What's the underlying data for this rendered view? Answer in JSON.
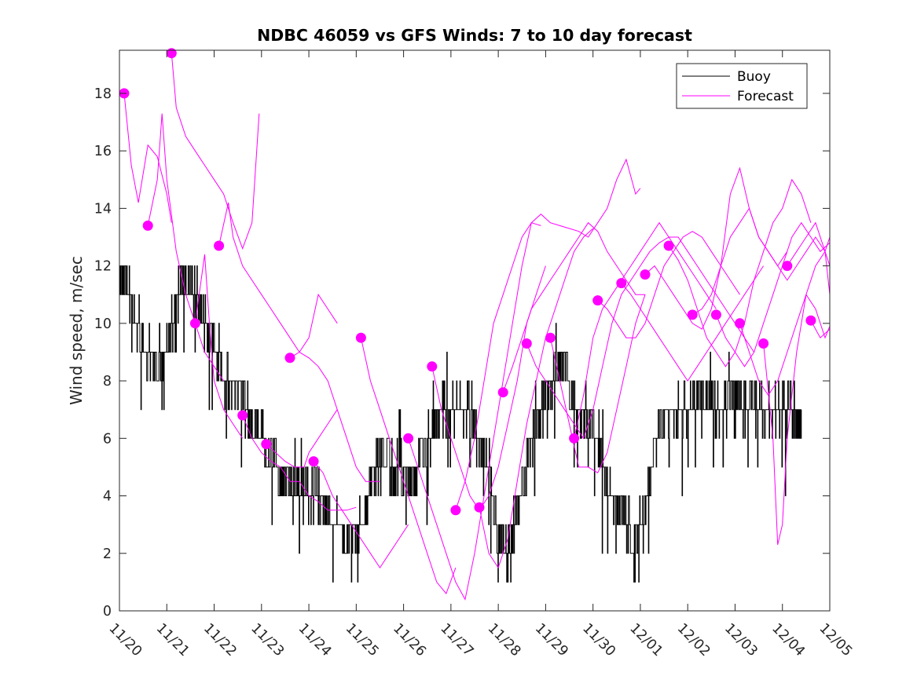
{
  "chart_data": {
    "type": "line",
    "title": "NDBC 46059 vs GFS Winds: 7 to 10 day forecast",
    "xlabel": "",
    "ylabel": "Wind speed, m/sec",
    "xlim": [
      0,
      15
    ],
    "ylim": [
      0,
      19.5
    ],
    "grid": false,
    "legend_position": "top-right",
    "x_tick_labels": [
      "11/20",
      "11/21",
      "11/22",
      "11/23",
      "11/24",
      "11/25",
      "11/26",
      "11/27",
      "11/28",
      "11/29",
      "11/30",
      "12/01",
      "12/02",
      "12/03",
      "12/04",
      "12/05"
    ],
    "y_ticks": [
      0,
      2,
      4,
      6,
      8,
      10,
      12,
      14,
      16,
      18
    ],
    "legend": [
      {
        "name": "Buoy",
        "color": "#000000"
      },
      {
        "name": "Forecast",
        "color": "#ff00ff"
      }
    ],
    "buoy_anchors": {
      "x": [
        0.0,
        0.2,
        0.4,
        0.5,
        0.6,
        0.8,
        1.0,
        1.2,
        1.4,
        1.6,
        1.8,
        2.0,
        2.2,
        2.4,
        2.6,
        2.8,
        3.0,
        3.2,
        3.4,
        3.6,
        3.8,
        4.0,
        4.2,
        4.4,
        4.6,
        4.8,
        5.0,
        5.2,
        5.4,
        5.6,
        5.8,
        6.0,
        6.2,
        6.4,
        6.6,
        6.8,
        7.0,
        7.2,
        7.4,
        7.6,
        7.8,
        8.0,
        8.2,
        8.4,
        8.6,
        8.8,
        9.0,
        9.2,
        9.4,
        9.6,
        9.8,
        10.0,
        10.2,
        10.4,
        10.6,
        10.8,
        11.0,
        11.2,
        11.4,
        11.6,
        11.8,
        12.0,
        12.2,
        12.4,
        12.6,
        12.8,
        13.0,
        13.2,
        13.4,
        13.6,
        13.8,
        14.0,
        14.2,
        14.4
      ],
      "y": [
        12.0,
        11.0,
        10.0,
        9.0,
        9.0,
        8.5,
        9.0,
        11.0,
        11.5,
        11.0,
        10.0,
        9.0,
        8.0,
        8.0,
        7.5,
        6.5,
        6.0,
        5.5,
        4.5,
        4.5,
        4.0,
        4.0,
        4.0,
        3.5,
        3.0,
        2.5,
        2.5,
        3.5,
        5.0,
        5.5,
        5.0,
        5.0,
        4.5,
        5.5,
        6.0,
        7.0,
        7.0,
        7.0,
        7.0,
        6.0,
        5.0,
        2.5,
        2.0,
        3.5,
        5.0,
        6.5,
        7.5,
        8.5,
        8.5,
        7.0,
        6.5,
        6.5,
        5.0,
        4.0,
        3.5,
        2.5,
        3.0,
        5.0,
        6.5,
        7.0,
        7.0,
        7.0,
        7.5,
        7.5,
        7.0,
        7.0,
        7.5,
        7.5,
        7.5,
        7.0,
        7.0,
        7.0,
        7.0,
        6.5
      ]
    },
    "forecast_runs": [
      {
        "x": [
          0.1,
          0.25,
          0.4,
          0.6,
          0.8,
          1.0,
          1.1
        ],
        "y": [
          18.0,
          15.5,
          14.2,
          16.2,
          15.8,
          14.5,
          13.5
        ]
      },
      {
        "x": [
          0.6,
          0.8,
          0.9,
          1.0,
          1.2,
          1.4,
          1.6,
          1.8,
          2.0,
          2.2
        ],
        "y": [
          13.4,
          15.0,
          17.3,
          15.0,
          12.5,
          11.0,
          10.0,
          9.0,
          8.5,
          8.0
        ]
      },
      {
        "x": [
          1.1,
          1.2,
          1.4,
          1.6,
          1.8,
          2.0,
          2.2,
          2.4,
          2.6,
          2.8,
          2.95
        ],
        "y": [
          19.4,
          17.5,
          16.5,
          16.0,
          15.5,
          15.0,
          14.5,
          13.5,
          12.6,
          13.5,
          17.3
        ]
      },
      {
        "x": [
          1.6,
          1.8,
          1.9,
          2.0,
          2.2,
          2.4,
          2.6
        ],
        "y": [
          10.0,
          12.4,
          10.0,
          8.0,
          7.0,
          6.5,
          6.0
        ]
      },
      {
        "x": [
          2.1,
          2.3,
          2.4,
          2.6,
          2.8,
          3.0,
          3.2,
          3.4,
          3.6,
          3.8,
          4.0,
          4.2,
          4.4,
          4.6,
          4.8,
          5.0,
          5.2,
          5.4,
          5.5
        ],
        "y": [
          12.7,
          14.2,
          13.0,
          12.0,
          11.5,
          11.0,
          10.5,
          10.0,
          9.5,
          9.0,
          8.8,
          8.5,
          8.0,
          7.0,
          6.0,
          5.0,
          4.5,
          4.5,
          4.5
        ]
      },
      {
        "x": [
          2.6,
          2.8,
          3.0,
          3.2,
          3.4,
          3.6,
          3.8,
          4.0,
          4.2,
          4.4,
          4.6,
          4.8,
          5.0
        ],
        "y": [
          6.8,
          6.0,
          5.5,
          5.2,
          5.0,
          4.5,
          4.5,
          4.0,
          3.8,
          3.5,
          3.5,
          3.5,
          3.6
        ]
      },
      {
        "x": [
          3.1,
          3.3,
          3.5,
          3.7,
          3.9,
          4.0,
          4.2,
          4.4,
          4.6
        ],
        "y": [
          5.8,
          5.5,
          5.2,
          5.0,
          5.0,
          5.5,
          6.0,
          6.5,
          7.0
        ]
      },
      {
        "x": [
          3.6,
          3.8,
          4.0,
          4.2,
          4.4,
          4.6
        ],
        "y": [
          8.8,
          9.0,
          9.5,
          11.0,
          10.5,
          10.0
        ]
      },
      {
        "x": [
          4.1,
          4.3,
          4.5,
          4.7,
          4.9,
          5.1,
          5.3,
          5.5,
          5.7,
          5.9,
          6.1
        ],
        "y": [
          5.2,
          4.8,
          4.0,
          3.5,
          3.0,
          2.5,
          2.0,
          1.5,
          2.0,
          2.5,
          3.0
        ]
      },
      {
        "x": [
          5.1,
          5.3,
          5.5,
          5.7,
          5.9,
          6.1,
          6.3,
          6.5,
          6.7,
          6.9,
          7.1
        ],
        "y": [
          9.5,
          8.0,
          7.0,
          6.0,
          5.0,
          4.0,
          3.0,
          2.0,
          1.0,
          0.6,
          1.5
        ]
      },
      {
        "x": [
          6.1,
          6.3,
          6.5,
          6.7,
          6.9,
          7.1,
          7.3,
          7.5,
          7.7,
          7.9,
          8.1,
          8.3,
          8.5,
          8.7,
          8.9
        ],
        "y": [
          6.0,
          5.0,
          4.0,
          3.0,
          2.0,
          1.0,
          0.4,
          2.0,
          4.0,
          6.0,
          8.0,
          10.0,
          12.0,
          13.5,
          13.4
        ]
      },
      {
        "x": [
          6.6,
          6.8,
          7.0,
          7.2,
          7.4,
          7.6,
          7.8,
          8.0,
          8.2,
          8.4,
          8.6,
          8.8,
          9.0
        ],
        "y": [
          8.5,
          7.0,
          6.0,
          5.0,
          4.0,
          3.5,
          4.0,
          5.0,
          6.5,
          8.0,
          10.0,
          11.0,
          12.0
        ]
      },
      {
        "x": [
          7.1,
          7.3,
          7.5,
          7.7,
          7.9,
          8.1,
          8.3,
          8.5,
          8.7,
          8.9,
          9.1,
          9.3,
          9.5,
          9.7,
          9.9,
          10.1,
          10.3,
          10.5,
          10.7,
          10.9,
          11.0
        ],
        "y": [
          3.5,
          4.5,
          6.0,
          8.0,
          10.0,
          11.0,
          12.0,
          13.0,
          13.5,
          13.8,
          13.5,
          13.4,
          13.3,
          13.2,
          13.0,
          13.5,
          14.0,
          15.0,
          15.7,
          14.5,
          14.7
        ]
      },
      {
        "x": [
          7.6,
          7.8,
          8.0,
          8.2,
          8.4,
          8.6,
          8.8,
          9.0,
          9.2,
          9.4,
          9.6,
          9.8,
          10.0
        ],
        "y": [
          3.6,
          2.0,
          1.5,
          2.5,
          4.5,
          6.5,
          8.0,
          9.5,
          10.5,
          11.5,
          12.5,
          13.0,
          13.3
        ]
      },
      {
        "x": [
          8.1,
          8.3,
          8.5,
          8.7,
          8.9,
          9.1,
          9.3,
          9.5,
          9.7,
          9.9,
          10.1,
          10.3,
          10.5,
          10.7,
          10.9,
          11.1
        ],
        "y": [
          7.6,
          8.5,
          9.5,
          10.5,
          11.0,
          11.5,
          12.0,
          12.5,
          13.0,
          13.5,
          13.2,
          12.5,
          12.0,
          11.5,
          11.0,
          11.0
        ]
      },
      {
        "x": [
          8.6,
          8.8,
          9.0,
          9.2,
          9.4,
          9.6,
          9.8,
          10.0,
          10.2,
          10.4,
          10.6,
          10.8,
          11.0,
          11.2,
          11.4,
          11.6,
          11.8,
          12.0,
          12.2,
          12.4,
          12.6,
          12.8,
          13.0,
          13.2,
          13.4
        ],
        "y": [
          9.3,
          8.5,
          8.0,
          7.5,
          7.0,
          6.5,
          6.0,
          7.0,
          8.5,
          10.0,
          11.0,
          11.5,
          12.0,
          12.5,
          12.8,
          13.0,
          13.0,
          12.5,
          12.0,
          11.5,
          11.0,
          10.5,
          10.0,
          9.5,
          9.0
        ]
      },
      {
        "x": [
          9.1,
          9.3,
          9.5,
          9.7,
          9.9,
          10.1,
          10.3,
          10.5,
          10.7,
          10.9,
          11.1
        ],
        "y": [
          9.5,
          8.0,
          6.5,
          5.0,
          5.0,
          4.8,
          5.5,
          7.0,
          8.5,
          10.0,
          11.0
        ]
      },
      {
        "x": [
          9.6,
          9.8,
          10.0,
          10.2,
          10.4,
          10.6,
          10.8,
          11.0,
          11.2,
          11.4,
          11.6,
          11.8,
          12.0,
          12.2,
          12.4,
          12.6
        ],
        "y": [
          6.0,
          7.5,
          9.5,
          10.5,
          11.0,
          11.5,
          12.0,
          12.5,
          13.0,
          13.5,
          13.0,
          12.5,
          12.0,
          11.5,
          11.0,
          10.5
        ]
      },
      {
        "x": [
          10.1,
          10.3,
          10.5,
          10.7,
          10.9,
          11.1,
          11.3,
          11.5,
          11.7,
          11.9,
          12.1,
          12.3,
          12.5,
          12.7,
          12.9,
          13.1
        ],
        "y": [
          10.8,
          10.5,
          10.0,
          9.5,
          9.5,
          10.0,
          11.0,
          12.0,
          12.5,
          13.0,
          13.2,
          13.0,
          12.5,
          12.0,
          11.5,
          11.0
        ]
      },
      {
        "x": [
          10.6,
          10.8,
          11.0,
          11.2,
          11.4,
          11.6,
          11.8,
          12.0,
          12.2,
          12.4,
          12.6,
          12.8,
          13.0,
          13.2,
          13.4,
          13.6
        ],
        "y": [
          11.4,
          11.0,
          10.5,
          10.0,
          9.5,
          9.0,
          8.5,
          8.0,
          8.5,
          9.0,
          9.5,
          10.0,
          10.5,
          11.0,
          11.5,
          12.0
        ]
      },
      {
        "x": [
          11.1,
          11.3,
          11.5,
          11.7,
          11.9,
          12.1,
          12.3,
          12.5,
          12.7,
          12.9,
          13.1,
          13.3,
          13.5,
          13.7,
          13.9,
          14.1
        ],
        "y": [
          11.7,
          12.0,
          11.5,
          11.0,
          10.5,
          10.0,
          9.8,
          10.5,
          12.0,
          14.5,
          15.4,
          14.0,
          13.0,
          12.5,
          12.0,
          12.5
        ]
      },
      {
        "x": [
          11.6,
          11.8,
          12.0,
          12.2,
          12.4,
          12.6,
          12.8,
          13.0,
          13.2,
          13.4,
          13.6,
          13.8,
          14.0,
          14.2,
          14.4,
          14.6
        ],
        "y": [
          12.7,
          12.2,
          11.5,
          10.5,
          9.5,
          9.0,
          8.5,
          9.0,
          10.0,
          11.5,
          12.5,
          13.5,
          14.0,
          15.0,
          14.5,
          13.5
        ]
      },
      {
        "x": [
          12.1,
          12.3,
          12.5,
          12.7,
          12.9,
          13.1,
          13.3,
          13.5,
          13.7,
          13.9,
          14.1,
          14.3,
          14.5,
          14.7,
          14.9,
          15.0
        ],
        "y": [
          10.3,
          10.5,
          11.0,
          12.0,
          13.0,
          13.5,
          14.0,
          13.0,
          12.5,
          12.0,
          11.5,
          12.0,
          12.5,
          13.0,
          12.5,
          12.0
        ]
      },
      {
        "x": [
          12.6,
          12.8,
          13.0,
          13.2,
          13.4,
          13.6,
          13.8,
          14.0,
          14.2,
          14.4,
          14.6,
          14.8,
          15.0
        ],
        "y": [
          10.3,
          9.5,
          9.0,
          8.5,
          9.0,
          10.0,
          11.0,
          12.0,
          13.0,
          13.5,
          13.0,
          12.5,
          12.8
        ]
      },
      {
        "x": [
          13.1,
          13.3,
          13.5,
          13.7,
          13.9,
          14.1,
          14.3,
          14.5,
          14.7,
          14.9,
          15.0
        ],
        "y": [
          10.0,
          9.0,
          8.0,
          7.5,
          8.0,
          9.0,
          10.0,
          11.0,
          12.0,
          12.5,
          13.0
        ]
      },
      {
        "x": [
          13.6,
          13.8,
          13.9,
          14.0,
          14.1,
          14.3,
          14.5,
          14.7,
          14.9,
          15.0
        ],
        "y": [
          9.3,
          6.0,
          2.3,
          3.0,
          6.0,
          9.0,
          11.0,
          10.5,
          9.5,
          9.9
        ]
      },
      {
        "x": [
          14.1,
          14.3,
          14.5,
          14.7,
          14.9,
          15.0
        ],
        "y": [
          12.0,
          12.5,
          13.0,
          13.5,
          12.5,
          11.0
        ]
      },
      {
        "x": [
          14.6,
          14.8,
          15.0
        ],
        "y": [
          10.1,
          9.5,
          9.8
        ]
      }
    ],
    "forecast_markers": {
      "x": [
        0.1,
        0.6,
        1.1,
        1.6,
        2.1,
        2.6,
        3.1,
        3.6,
        4.1,
        5.1,
        6.1,
        6.6,
        7.1,
        7.6,
        8.1,
        8.6,
        9.1,
        9.6,
        10.1,
        10.6,
        11.1,
        11.6,
        12.1,
        12.6,
        13.1,
        13.6,
        14.1,
        14.6
      ],
      "y": [
        18.0,
        13.4,
        19.4,
        10.0,
        12.7,
        6.8,
        5.8,
        8.8,
        5.2,
        9.5,
        6.0,
        8.5,
        3.5,
        3.6,
        7.6,
        9.3,
        9.5,
        6.0,
        10.8,
        11.4,
        11.7,
        12.7,
        10.3,
        10.3,
        10.0,
        9.3,
        12.0,
        10.1
      ]
    }
  }
}
